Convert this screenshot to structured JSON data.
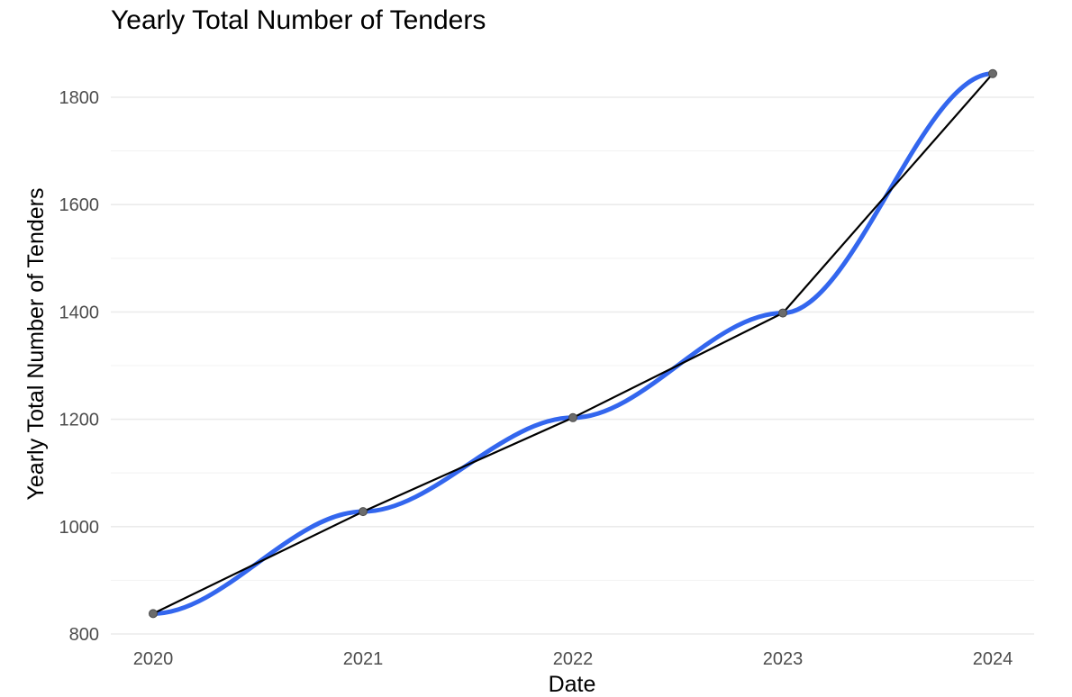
{
  "chart_data": {
    "type": "line",
    "title": "Yearly Total Number of Tenders",
    "xlabel": "Date",
    "ylabel": "Yearly Total Number of Tenders",
    "x": [
      "2020",
      "2021",
      "2022",
      "2023",
      "2024"
    ],
    "values": [
      838,
      1028,
      1203,
      1398,
      1844
    ],
    "xticks": [
      "2020",
      "2021",
      "2022",
      "2023",
      "2024"
    ],
    "yticks": [
      800,
      1000,
      1200,
      1400,
      1600,
      1800
    ],
    "ylim": [
      800,
      1870
    ],
    "grid": true,
    "legend": "none",
    "series": [
      {
        "style": "line",
        "color": "#000000"
      },
      {
        "style": "smooth",
        "color": "#3366ee"
      }
    ],
    "point_color": "#6b6b6b"
  }
}
